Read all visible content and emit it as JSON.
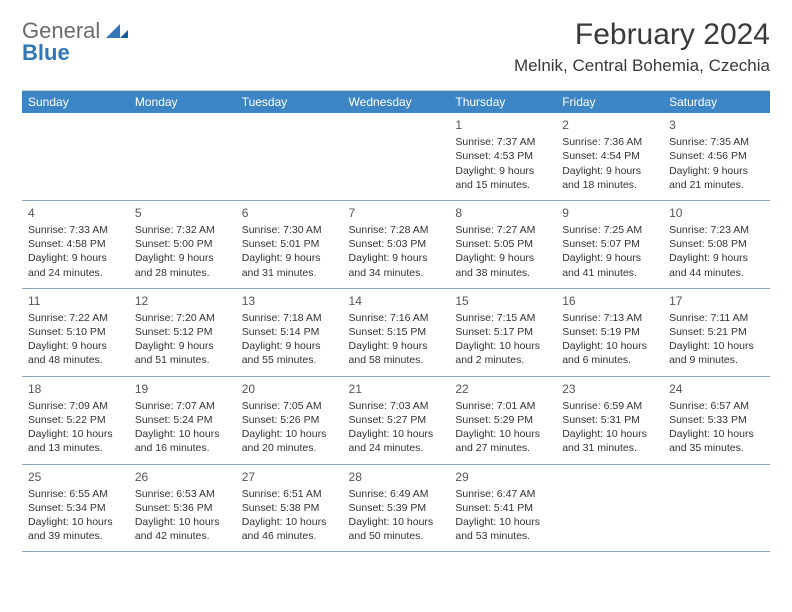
{
  "logo": {
    "general": "General",
    "blue": "Blue"
  },
  "title": "February 2024",
  "location": "Melnik, Central Bohemia, Czechia",
  "colors": {
    "header_bg": "#3d86c6",
    "header_text": "#ffffff",
    "rule": "#8aa5bb",
    "logo_gray": "#6b6b6b",
    "logo_blue": "#2f77b8",
    "text": "#333333",
    "page_bg": "#ffffff"
  },
  "weekdays": [
    "Sunday",
    "Monday",
    "Tuesday",
    "Wednesday",
    "Thursday",
    "Friday",
    "Saturday"
  ],
  "weeks": [
    [
      {
        "day": "",
        "sunrise": "",
        "sunset": "",
        "daylight": ""
      },
      {
        "day": "",
        "sunrise": "",
        "sunset": "",
        "daylight": ""
      },
      {
        "day": "",
        "sunrise": "",
        "sunset": "",
        "daylight": ""
      },
      {
        "day": "",
        "sunrise": "",
        "sunset": "",
        "daylight": ""
      },
      {
        "day": "1",
        "sunrise": "Sunrise: 7:37 AM",
        "sunset": "Sunset: 4:53 PM",
        "daylight": "Daylight: 9 hours and 15 minutes."
      },
      {
        "day": "2",
        "sunrise": "Sunrise: 7:36 AM",
        "sunset": "Sunset: 4:54 PM",
        "daylight": "Daylight: 9 hours and 18 minutes."
      },
      {
        "day": "3",
        "sunrise": "Sunrise: 7:35 AM",
        "sunset": "Sunset: 4:56 PM",
        "daylight": "Daylight: 9 hours and 21 minutes."
      }
    ],
    [
      {
        "day": "4",
        "sunrise": "Sunrise: 7:33 AM",
        "sunset": "Sunset: 4:58 PM",
        "daylight": "Daylight: 9 hours and 24 minutes."
      },
      {
        "day": "5",
        "sunrise": "Sunrise: 7:32 AM",
        "sunset": "Sunset: 5:00 PM",
        "daylight": "Daylight: 9 hours and 28 minutes."
      },
      {
        "day": "6",
        "sunrise": "Sunrise: 7:30 AM",
        "sunset": "Sunset: 5:01 PM",
        "daylight": "Daylight: 9 hours and 31 minutes."
      },
      {
        "day": "7",
        "sunrise": "Sunrise: 7:28 AM",
        "sunset": "Sunset: 5:03 PM",
        "daylight": "Daylight: 9 hours and 34 minutes."
      },
      {
        "day": "8",
        "sunrise": "Sunrise: 7:27 AM",
        "sunset": "Sunset: 5:05 PM",
        "daylight": "Daylight: 9 hours and 38 minutes."
      },
      {
        "day": "9",
        "sunrise": "Sunrise: 7:25 AM",
        "sunset": "Sunset: 5:07 PM",
        "daylight": "Daylight: 9 hours and 41 minutes."
      },
      {
        "day": "10",
        "sunrise": "Sunrise: 7:23 AM",
        "sunset": "Sunset: 5:08 PM",
        "daylight": "Daylight: 9 hours and 44 minutes."
      }
    ],
    [
      {
        "day": "11",
        "sunrise": "Sunrise: 7:22 AM",
        "sunset": "Sunset: 5:10 PM",
        "daylight": "Daylight: 9 hours and 48 minutes."
      },
      {
        "day": "12",
        "sunrise": "Sunrise: 7:20 AM",
        "sunset": "Sunset: 5:12 PM",
        "daylight": "Daylight: 9 hours and 51 minutes."
      },
      {
        "day": "13",
        "sunrise": "Sunrise: 7:18 AM",
        "sunset": "Sunset: 5:14 PM",
        "daylight": "Daylight: 9 hours and 55 minutes."
      },
      {
        "day": "14",
        "sunrise": "Sunrise: 7:16 AM",
        "sunset": "Sunset: 5:15 PM",
        "daylight": "Daylight: 9 hours and 58 minutes."
      },
      {
        "day": "15",
        "sunrise": "Sunrise: 7:15 AM",
        "sunset": "Sunset: 5:17 PM",
        "daylight": "Daylight: 10 hours and 2 minutes."
      },
      {
        "day": "16",
        "sunrise": "Sunrise: 7:13 AM",
        "sunset": "Sunset: 5:19 PM",
        "daylight": "Daylight: 10 hours and 6 minutes."
      },
      {
        "day": "17",
        "sunrise": "Sunrise: 7:11 AM",
        "sunset": "Sunset: 5:21 PM",
        "daylight": "Daylight: 10 hours and 9 minutes."
      }
    ],
    [
      {
        "day": "18",
        "sunrise": "Sunrise: 7:09 AM",
        "sunset": "Sunset: 5:22 PM",
        "daylight": "Daylight: 10 hours and 13 minutes."
      },
      {
        "day": "19",
        "sunrise": "Sunrise: 7:07 AM",
        "sunset": "Sunset: 5:24 PM",
        "daylight": "Daylight: 10 hours and 16 minutes."
      },
      {
        "day": "20",
        "sunrise": "Sunrise: 7:05 AM",
        "sunset": "Sunset: 5:26 PM",
        "daylight": "Daylight: 10 hours and 20 minutes."
      },
      {
        "day": "21",
        "sunrise": "Sunrise: 7:03 AM",
        "sunset": "Sunset: 5:27 PM",
        "daylight": "Daylight: 10 hours and 24 minutes."
      },
      {
        "day": "22",
        "sunrise": "Sunrise: 7:01 AM",
        "sunset": "Sunset: 5:29 PM",
        "daylight": "Daylight: 10 hours and 27 minutes."
      },
      {
        "day": "23",
        "sunrise": "Sunrise: 6:59 AM",
        "sunset": "Sunset: 5:31 PM",
        "daylight": "Daylight: 10 hours and 31 minutes."
      },
      {
        "day": "24",
        "sunrise": "Sunrise: 6:57 AM",
        "sunset": "Sunset: 5:33 PM",
        "daylight": "Daylight: 10 hours and 35 minutes."
      }
    ],
    [
      {
        "day": "25",
        "sunrise": "Sunrise: 6:55 AM",
        "sunset": "Sunset: 5:34 PM",
        "daylight": "Daylight: 10 hours and 39 minutes."
      },
      {
        "day": "26",
        "sunrise": "Sunrise: 6:53 AM",
        "sunset": "Sunset: 5:36 PM",
        "daylight": "Daylight: 10 hours and 42 minutes."
      },
      {
        "day": "27",
        "sunrise": "Sunrise: 6:51 AM",
        "sunset": "Sunset: 5:38 PM",
        "daylight": "Daylight: 10 hours and 46 minutes."
      },
      {
        "day": "28",
        "sunrise": "Sunrise: 6:49 AM",
        "sunset": "Sunset: 5:39 PM",
        "daylight": "Daylight: 10 hours and 50 minutes."
      },
      {
        "day": "29",
        "sunrise": "Sunrise: 6:47 AM",
        "sunset": "Sunset: 5:41 PM",
        "daylight": "Daylight: 10 hours and 53 minutes."
      },
      {
        "day": "",
        "sunrise": "",
        "sunset": "",
        "daylight": ""
      },
      {
        "day": "",
        "sunrise": "",
        "sunset": "",
        "daylight": ""
      }
    ]
  ]
}
